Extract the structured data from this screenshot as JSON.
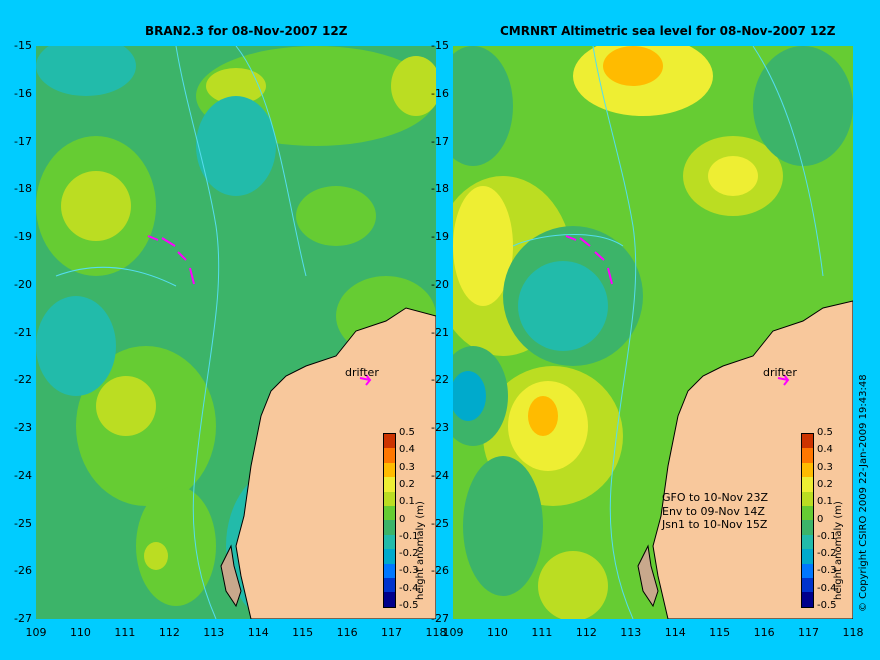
{
  "titles": {
    "left": "BRAN2.3 for 08-Nov-2007 12Z",
    "right": "CMRNRT Altimetric sea level  for 08-Nov-2007 12Z"
  },
  "axes": {
    "y_ticks": [
      "-15",
      "-16",
      "-17",
      "-18",
      "-19",
      "-20",
      "-21",
      "-22",
      "-23",
      "-24",
      "-25",
      "-26",
      "-27"
    ],
    "x_ticks": [
      "109",
      "110",
      "111",
      "112",
      "113",
      "114",
      "115",
      "116",
      "117",
      "118"
    ]
  },
  "colorbar": {
    "label": "height anomaly (m)",
    "ticks": [
      "0.5",
      "0.4",
      "0.3",
      "0.2",
      "0.1",
      "0",
      "-0.1",
      "-0.2",
      "-0.3",
      "-0.4",
      "-0.5"
    ],
    "colors": [
      "#00008b",
      "#0033cc",
      "#0077ff",
      "#00aacc",
      "#22bbaa",
      "#3cb469",
      "#66cc33",
      "#bbdd22",
      "#eeee33",
      "#ffbb00",
      "#ff7700",
      "#cc3300"
    ]
  },
  "drifter_label": "drifter",
  "altimeter_notes": [
    "GFO to 10-Nov 23Z",
    "Env to 09-Nov 14Z",
    "Jsn1 to 10-Nov 15Z"
  ],
  "copyright": "© Copyright CSIRO 2009   22-Jan-2009 19:43:48",
  "colors": {
    "background": "#00ccff",
    "land": "#f8c89c",
    "drifter": "#ff00ff",
    "contour": "#55ddee"
  }
}
